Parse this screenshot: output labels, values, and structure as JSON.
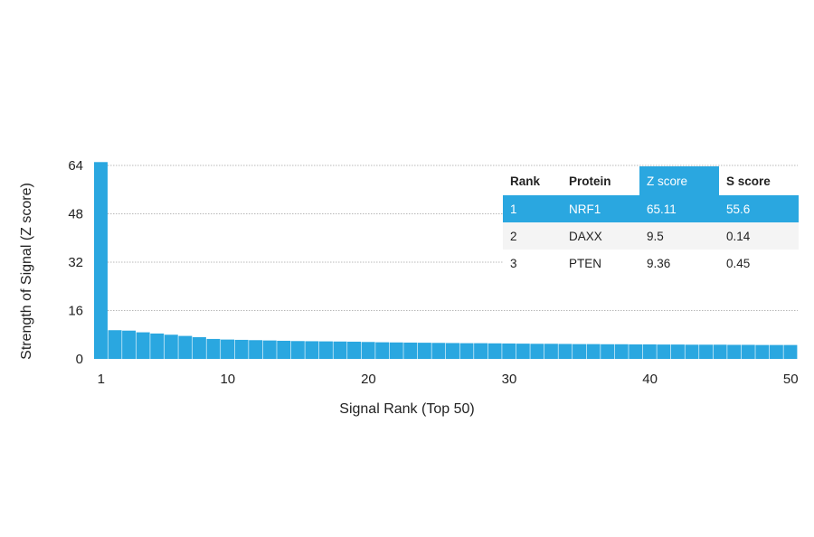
{
  "chart_data": {
    "type": "bar",
    "title": "",
    "xlabel": "Signal Rank (Top 50)",
    "ylabel": "Strength of Signal (Z score)",
    "ylim": [
      0,
      64
    ],
    "yticks": [
      0,
      16,
      32,
      48,
      64
    ],
    "xticks": [
      1,
      10,
      20,
      30,
      40,
      50
    ],
    "grid": true,
    "bar_color": "#2aa7e0",
    "x": [
      1,
      2,
      3,
      4,
      5,
      6,
      7,
      8,
      9,
      10,
      11,
      12,
      13,
      14,
      15,
      16,
      17,
      18,
      19,
      20,
      21,
      22,
      23,
      24,
      25,
      26,
      27,
      28,
      29,
      30,
      31,
      32,
      33,
      34,
      35,
      36,
      37,
      38,
      39,
      40,
      41,
      42,
      43,
      44,
      45,
      46,
      47,
      48,
      49,
      50
    ],
    "values": [
      65.11,
      9.5,
      9.36,
      8.8,
      8.4,
      8.0,
      7.6,
      7.2,
      6.6,
      6.4,
      6.3,
      6.2,
      6.1,
      6.0,
      5.9,
      5.85,
      5.8,
      5.75,
      5.7,
      5.6,
      5.5,
      5.45,
      5.4,
      5.35,
      5.3,
      5.25,
      5.2,
      5.2,
      5.15,
      5.1,
      5.05,
      5.0,
      5.0,
      4.95,
      4.9,
      4.9,
      4.85,
      4.85,
      4.8,
      4.8,
      4.75,
      4.75,
      4.7,
      4.7,
      4.7,
      4.65,
      4.65,
      4.6,
      4.6,
      4.6
    ]
  },
  "table": {
    "headers": [
      "Rank",
      "Protein",
      "Z score",
      "S score"
    ],
    "rows": [
      [
        "1",
        "NRF1",
        "65.11",
        "55.6"
      ],
      [
        "2",
        "DAXX",
        "9.5",
        "0.14"
      ],
      [
        "3",
        "PTEN",
        "9.36",
        "0.45"
      ]
    ],
    "highlight_color": "#2aa7e0"
  }
}
